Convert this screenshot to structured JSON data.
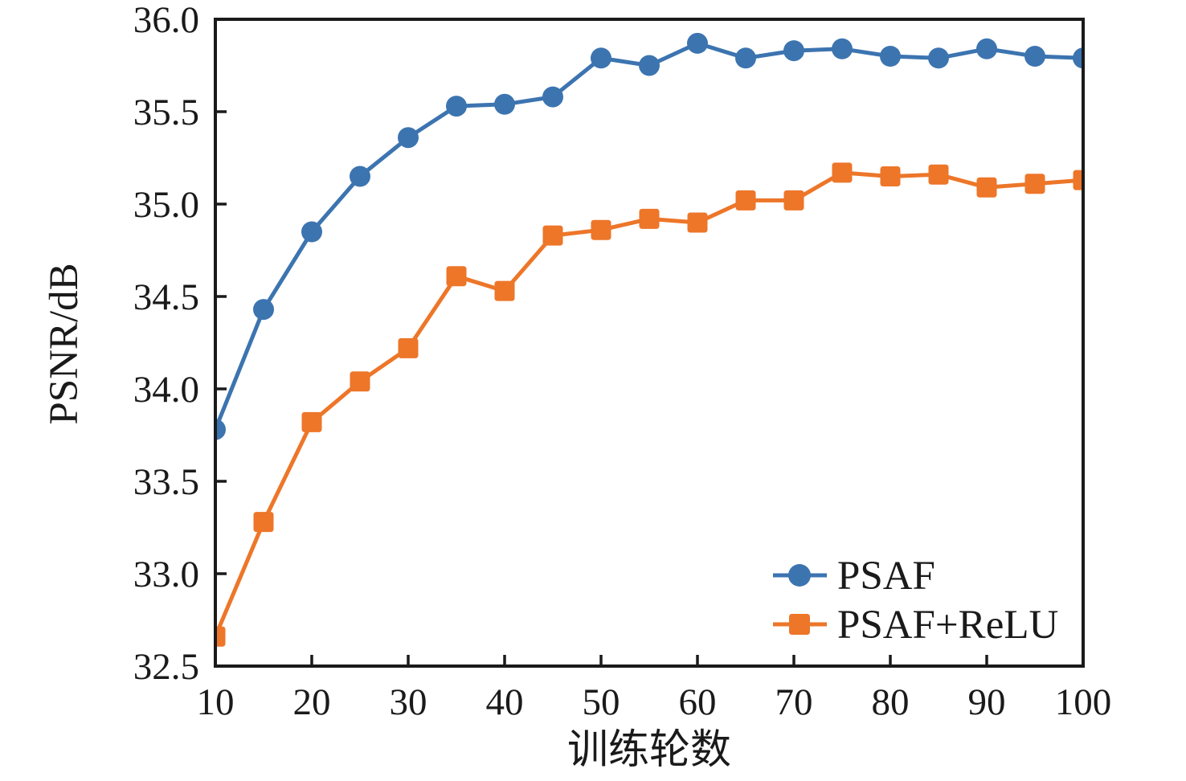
{
  "chart_data": {
    "type": "line",
    "title": "",
    "xlabel": "训练轮数",
    "ylabel": "PSNR/dB",
    "x": [
      10,
      15,
      20,
      25,
      30,
      35,
      40,
      45,
      50,
      55,
      60,
      65,
      70,
      75,
      80,
      85,
      90,
      95,
      100
    ],
    "series": [
      {
        "name": "PSAF",
        "marker": "circle",
        "color": "#3C74B0",
        "values": [
          33.78,
          34.43,
          34.85,
          35.15,
          35.36,
          35.53,
          35.54,
          35.58,
          35.79,
          35.75,
          35.87,
          35.79,
          35.83,
          35.84,
          35.8,
          35.79,
          35.84,
          35.8,
          35.79
        ]
      },
      {
        "name": "PSAF+ReLU",
        "marker": "square",
        "color": "#ED7629",
        "values": [
          32.66,
          33.28,
          33.82,
          34.04,
          34.22,
          34.61,
          34.53,
          34.83,
          34.86,
          34.92,
          34.9,
          35.02,
          35.02,
          35.17,
          35.15,
          35.16,
          35.09,
          35.11,
          35.13
        ]
      }
    ],
    "xlim": [
      10,
      100
    ],
    "ylim": [
      32.5,
      36.0
    ],
    "xticks": [
      10,
      20,
      30,
      40,
      50,
      60,
      70,
      80,
      90,
      100
    ],
    "xtick_labels": [
      "10",
      "20",
      "30",
      "40",
      "50",
      "60",
      "70",
      "80",
      "90",
      "100"
    ],
    "yticks": [
      32.5,
      33.0,
      33.5,
      34.0,
      34.5,
      35.0,
      35.5,
      36.0
    ],
    "ytick_labels": [
      "32.5",
      "33.0",
      "33.5",
      "34.0",
      "34.5",
      "35.0",
      "35.5",
      "36.0"
    ],
    "grid": false,
    "ticks_direction": "in",
    "legend_position": "lower right",
    "legend_entries": [
      "PSAF",
      "PSAF+ReLU"
    ],
    "axis_color": "#1a1a1a",
    "background_color": "#ffffff"
  }
}
